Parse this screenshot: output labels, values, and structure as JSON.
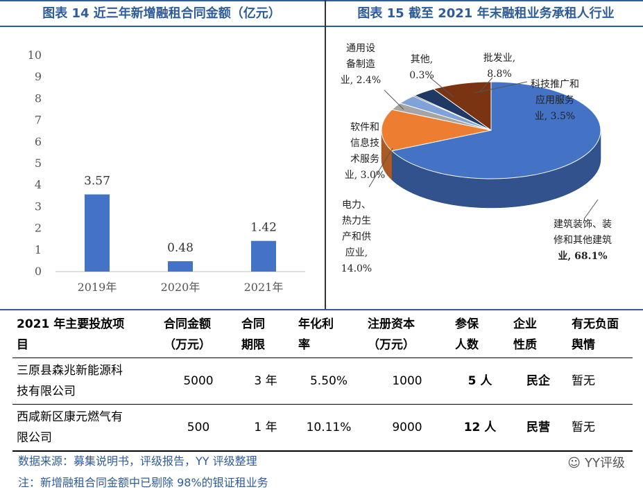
{
  "left_title": "图表 14 近三年新增融租合同金额（亿元）",
  "right_title": "图表 15  截至 2021 年末融租业务承租人行业",
  "chart_data": [
    {
      "type": "bar",
      "title": "图表 14 近三年新增融租合同金额（亿元）",
      "categories": [
        "2019年",
        "2020年",
        "2021年"
      ],
      "values": [
        3.57,
        0.48,
        1.42
      ],
      "data_labels": [
        "3.57",
        "0.48",
        "1.42"
      ],
      "ylim": [
        0,
        10
      ],
      "yticks": [
        "0",
        "1",
        "2",
        "3",
        "4",
        "5",
        "6",
        "7",
        "8",
        "9",
        "10"
      ],
      "color": "#4472c4"
    },
    {
      "type": "pie",
      "title": "图表 15  截至 2021 年末融租业务承租人行业",
      "slices": [
        {
          "name": "建筑装饰、装修和其他建筑业",
          "value": 68.1,
          "color": "#4472c4",
          "label_lines": [
            "建筑装饰、装",
            "修和其他建筑",
            "业, 68.1%"
          ]
        },
        {
          "name": "电力、热力生产和供应业",
          "value": 14.0,
          "color": "#ed7d31",
          "label_lines": [
            "电力、",
            "热力生",
            "产和供",
            "应业,",
            "14.0%"
          ]
        },
        {
          "name": "通用设备制造业",
          "value": 2.4,
          "color": "#a5a5a5",
          "label_lines": [
            "通用设",
            "备制造",
            "业, 2.4%"
          ]
        },
        {
          "name": "软件和信息技术服务业",
          "value": 3.0,
          "color": "#7fa3d8",
          "label_lines": [
            "软件和",
            "信息技",
            "术服务",
            "业, 3.0%"
          ]
        },
        {
          "name": "其他",
          "value": 0.3,
          "color": "#264478",
          "label_lines": [
            "其他,",
            "0.3%"
          ]
        },
        {
          "name": "科技推广和应用服务业",
          "value": 3.5,
          "color": "#1f3864",
          "label_lines": [
            "科技推广和",
            "应用服务",
            "业, 3.5%"
          ]
        },
        {
          "name": "批发业",
          "value": 8.8,
          "color": "#7b3411",
          "label_lines": [
            "批发业,",
            "8.8%"
          ]
        }
      ]
    }
  ],
  "table": {
    "headers": [
      [
        "2021 年主要投放项",
        "目"
      ],
      [
        "合同金额",
        "（万元）"
      ],
      [
        "合同",
        "期限"
      ],
      [
        "年化利",
        "率"
      ],
      [
        "注册资本",
        "（万元）"
      ],
      [
        "参保",
        "人数"
      ],
      [
        "企业",
        "性质"
      ],
      [
        "有无负面",
        "舆情"
      ]
    ],
    "rows": [
      {
        "name_lines": [
          "三原县森兆新能源科",
          "技有限公司"
        ],
        "amount": "5000",
        "term": "3 年",
        "rate": "5.50%",
        "capital": "1000",
        "insured": "5 人",
        "nature": "民企",
        "negative": "暂无"
      },
      {
        "name_lines": [
          "西咸新区康元燃气有",
          "限公司"
        ],
        "amount": "500",
        "term": "1 年",
        "rate": "10.11%",
        "capital": "9000",
        "insured": "12 人",
        "nature": "民营",
        "negative": "暂无"
      }
    ]
  },
  "footnotes": {
    "source": "数据来源：募集说明书，评级报告，YY 评级整理",
    "note": "注：新增融租合同金额中已剔除 98%的银证租业务"
  },
  "watermark": "YY评级"
}
